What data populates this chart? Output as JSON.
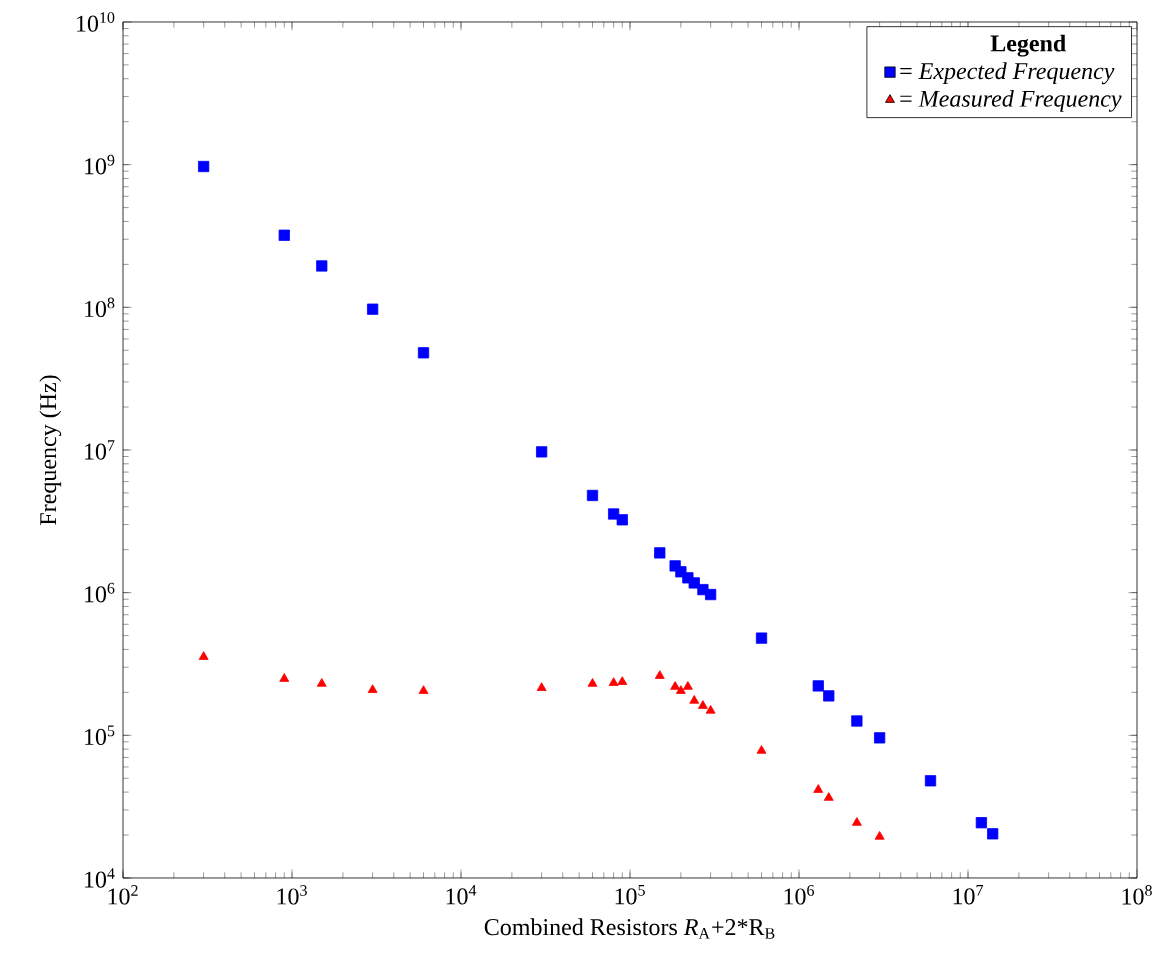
{
  "chart_data": {
    "type": "scatter",
    "xlabel": "Combined Resistors *R*$_{A}$+2*R$_{B}$",
    "ylabel": "Frequency (Hz)",
    "legend_title": "**Legend**",
    "x": [
      300,
      900,
      1500,
      3000,
      6000,
      30000,
      60000,
      80000,
      90000,
      150000,
      185000,
      200000,
      220000,
      240000,
      270000,
      300000,
      600000,
      1300000,
      1500000,
      2200000,
      3000000,
      6000000,
      12000000,
      14000000
    ],
    "series": [
      {
        "name": "= *Expected Frequency*",
        "color": "#0000ff",
        "marker": "square",
        "values": [
          970000000,
          320000000,
          195000000,
          97000000,
          48000000,
          9700000,
          4800000,
          3560000,
          3240000,
          1900000,
          1540000,
          1400000,
          1270000,
          1170000,
          1050000,
          970000,
          480000,
          222000,
          189000,
          126000,
          96000,
          48000,
          24400,
          20400
        ]
      },
      {
        "name": "= *Measured Frequency*",
        "color": "#ff0000",
        "marker": "triangle",
        "values": [
          355000,
          249000,
          230000,
          208000,
          205000,
          215000,
          230000,
          233000,
          237000,
          261000,
          219000,
          205000,
          219000,
          175000,
          161000,
          149000,
          78000,
          41500,
          36500,
          24400,
          19500,
          null,
          null,
          null
        ]
      }
    ],
    "log": "xy",
    "xlim": [
      100,
      100000000
    ],
    "ylim": [
      10000,
      10000000000
    ],
    "xticks": [
      {
        "value": 100,
        "label": "10$^{2}$"
      },
      {
        "value": 1000,
        "label": "10$^{3}$"
      },
      {
        "value": 10000,
        "label": "10$^{4}$"
      },
      {
        "value": 100000,
        "label": "10$^{5}$"
      },
      {
        "value": 1000000,
        "label": "10$^{6}$"
      },
      {
        "value": 10000000,
        "label": "10$^{7}$"
      },
      {
        "value": 100000000,
        "label": "10$^{8}$"
      }
    ],
    "yticks": [
      {
        "value": 10000,
        "label": "10$^{4}$"
      },
      {
        "value": 100000,
        "label": "10$^{5}$"
      },
      {
        "value": 1000000,
        "label": "10$^{6}$"
      },
      {
        "value": 10000000,
        "label": "10$^{7}$"
      },
      {
        "value": 100000000,
        "label": "10$^{8}$"
      },
      {
        "value": 1000000000,
        "label": "10$^{9}$"
      },
      {
        "value": 10000000000,
        "label": "10$^{10}$"
      }
    ],
    "legend": "top right",
    "grid": false
  }
}
